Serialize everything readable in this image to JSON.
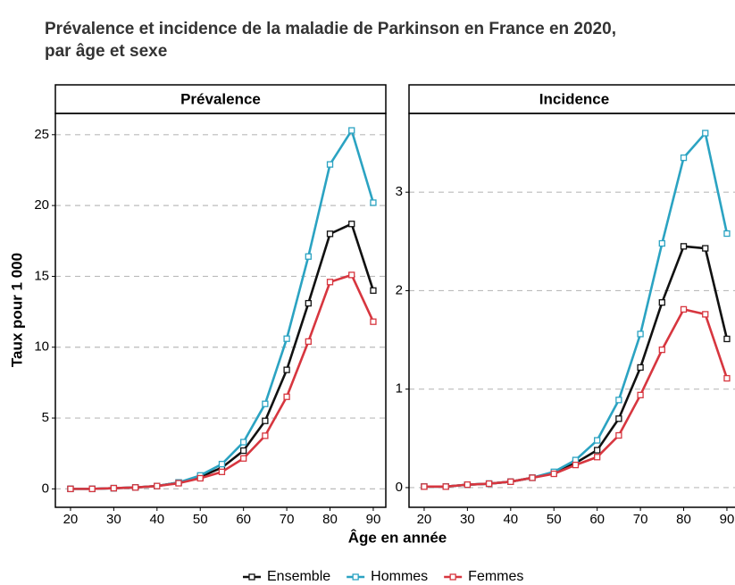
{
  "title": [
    "Prévalence et incidence de la maladie de Parkinson en France en 2020,",
    "par âge et sexe"
  ],
  "xlabel": "Âge en année",
  "ylabel": "Taux pour 1 000",
  "chart_data": [
    {
      "type": "line",
      "title": "Prévalence",
      "x": [
        20,
        25,
        30,
        35,
        40,
        45,
        50,
        55,
        60,
        65,
        70,
        75,
        80,
        85,
        90
      ],
      "xlim": [
        16.5,
        92.9
      ],
      "xticks": [
        20,
        30,
        40,
        50,
        60,
        70,
        80,
        90
      ],
      "ylim": [
        -1.3,
        26.5
      ],
      "yticks": [
        0,
        5,
        10,
        15,
        20,
        25
      ],
      "grid": true,
      "series": [
        {
          "name": "Ensemble",
          "color": "#111111",
          "values": [
            0,
            0,
            0.05,
            0.1,
            0.2,
            0.45,
            0.85,
            1.5,
            2.7,
            4.8,
            8.4,
            13.1,
            18.0,
            18.7,
            14.0
          ]
        },
        {
          "name": "Hommes",
          "color": "#2ba3c2",
          "values": [
            0,
            0,
            0.05,
            0.1,
            0.2,
            0.45,
            0.95,
            1.75,
            3.3,
            6.0,
            10.6,
            16.4,
            22.9,
            25.3,
            20.2
          ]
        },
        {
          "name": "Femmes",
          "color": "#d7363f",
          "values": [
            0,
            0,
            0.05,
            0.1,
            0.2,
            0.4,
            0.75,
            1.2,
            2.15,
            3.75,
            6.5,
            10.4,
            14.6,
            15.1,
            11.8
          ]
        }
      ]
    },
    {
      "type": "line",
      "title": "Incidence",
      "x": [
        20,
        25,
        30,
        35,
        40,
        45,
        50,
        55,
        60,
        65,
        70,
        75,
        80,
        85,
        90
      ],
      "xlim": [
        16.5,
        92.9
      ],
      "xticks": [
        20,
        30,
        40,
        50,
        60,
        70,
        80,
        90
      ],
      "ylim": [
        -0.2,
        3.8
      ],
      "yticks": [
        0,
        1,
        2,
        3
      ],
      "grid": true,
      "series": [
        {
          "name": "Ensemble",
          "color": "#111111",
          "values": [
            0.01,
            0.01,
            0.03,
            0.04,
            0.06,
            0.1,
            0.15,
            0.25,
            0.38,
            0.7,
            1.22,
            1.88,
            2.45,
            2.43,
            1.51
          ]
        },
        {
          "name": "Hommes",
          "color": "#2ba3c2",
          "values": [
            0.01,
            0.01,
            0.03,
            0.04,
            0.06,
            0.1,
            0.16,
            0.28,
            0.48,
            0.89,
            1.56,
            2.48,
            3.35,
            3.6,
            2.58
          ]
        },
        {
          "name": "Femmes",
          "color": "#d7363f",
          "values": [
            0.01,
            0.01,
            0.03,
            0.04,
            0.06,
            0.1,
            0.14,
            0.23,
            0.31,
            0.53,
            0.94,
            1.4,
            1.81,
            1.76,
            1.11
          ]
        }
      ]
    }
  ]
}
